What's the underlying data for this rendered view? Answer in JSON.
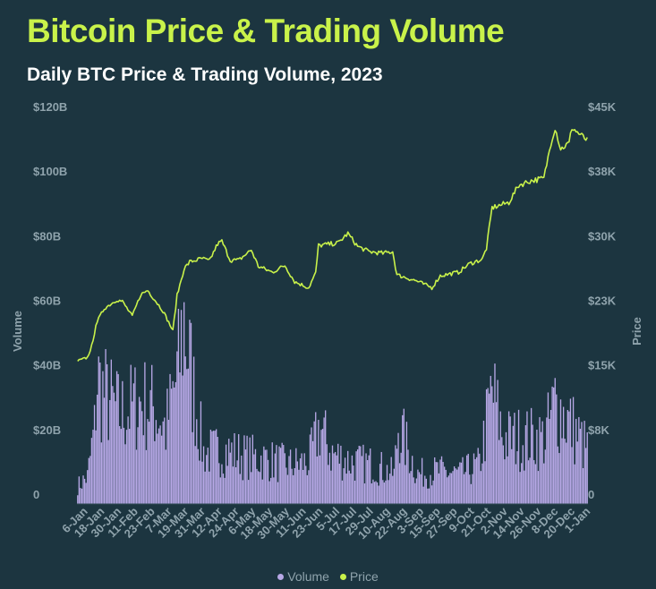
{
  "title": "Bitcoin Price & Trading Volume",
  "subtitle": "Daily BTC Price & Trading Volume, 2023",
  "colors": {
    "background": "#1c3540",
    "title": "#c9f24a",
    "price_line": "#c9f24a",
    "volume_bar": "#b7a8e6",
    "axis_text": "#8fa3ac"
  },
  "chart_data": {
    "type": "bar+line",
    "title": "Bitcoin Price & Trading Volume",
    "subtitle": "Daily BTC Price & Trading Volume, 2023",
    "y_left": {
      "label": "Volume",
      "range": [
        0,
        120000000000
      ],
      "ticks": [
        "0",
        "$20B",
        "$40B",
        "$60B",
        "$80B",
        "$100B",
        "$120B"
      ]
    },
    "y_right": {
      "label": "Price",
      "range": [
        0,
        45000
      ],
      "ticks": [
        "0",
        "$8K",
        "$15K",
        "$23K",
        "$30K",
        "$38K",
        "$45K"
      ]
    },
    "x_ticks": [
      "6-Jan",
      "18-Jan",
      "30-Jan",
      "11-Feb",
      "23-Feb",
      "7-Mar",
      "19-Mar",
      "31-Mar",
      "12-Apr",
      "24-Apr",
      "6-May",
      "18-May",
      "30-May",
      "11-Jun",
      "23-Jun",
      "5-Jul",
      "17-Jul",
      "29-Jul",
      "10-Aug",
      "22-Aug",
      "3-Sep",
      "15-Sep",
      "27-Sep",
      "9-Oct",
      "21-Oct",
      "2-Nov",
      "14-Nov",
      "26-Nov",
      "8-Dec",
      "20-Dec",
      "1-Jan"
    ],
    "grid": false,
    "legend_position": "bottom",
    "series": [
      {
        "name": "Volume",
        "type": "bar",
        "axis": "left",
        "color": "#b7a8e6"
      },
      {
        "name": "Price",
        "type": "line",
        "axis": "right",
        "color": "#c9f24a"
      }
    ],
    "price_anchors": [
      [
        "2023-01-01",
        16600
      ],
      [
        "2023-01-08",
        17000
      ],
      [
        "2023-01-12",
        18800
      ],
      [
        "2023-01-14",
        20900
      ],
      [
        "2023-01-20",
        22700
      ],
      [
        "2023-01-29",
        23700
      ],
      [
        "2023-02-02",
        23500
      ],
      [
        "2023-02-09",
        21800
      ],
      [
        "2023-02-15",
        24300
      ],
      [
        "2023-02-20",
        24800
      ],
      [
        "2023-02-26",
        23500
      ],
      [
        "2023-03-03",
        22400
      ],
      [
        "2023-03-10",
        20100
      ],
      [
        "2023-03-13",
        24200
      ],
      [
        "2023-03-18",
        27300
      ],
      [
        "2023-03-22",
        28100
      ],
      [
        "2023-03-31",
        28500
      ],
      [
        "2023-04-05",
        28200
      ],
      [
        "2023-04-11",
        30200
      ],
      [
        "2023-04-14",
        30500
      ],
      [
        "2023-04-20",
        28300
      ],
      [
        "2023-04-26",
        28300
      ],
      [
        "2023-05-05",
        29500
      ],
      [
        "2023-05-10",
        27600
      ],
      [
        "2023-05-20",
        26900
      ],
      [
        "2023-05-29",
        27700
      ],
      [
        "2023-06-05",
        25800
      ],
      [
        "2023-06-15",
        25100
      ],
      [
        "2023-06-20",
        26800
      ],
      [
        "2023-06-22",
        30000
      ],
      [
        "2023-07-06",
        30300
      ],
      [
        "2023-07-13",
        31400
      ],
      [
        "2023-07-20",
        29900
      ],
      [
        "2023-07-28",
        29300
      ],
      [
        "2023-08-07",
        29100
      ],
      [
        "2023-08-14",
        29300
      ],
      [
        "2023-08-17",
        26600
      ],
      [
        "2023-08-31",
        25900
      ],
      [
        "2023-09-11",
        25100
      ],
      [
        "2023-09-17",
        26500
      ],
      [
        "2023-09-30",
        26900
      ],
      [
        "2023-10-08",
        27900
      ],
      [
        "2023-10-17",
        28400
      ],
      [
        "2023-10-20",
        29700
      ],
      [
        "2023-10-24",
        34400
      ],
      [
        "2023-11-05",
        35000
      ],
      [
        "2023-11-12",
        37000
      ],
      [
        "2023-11-20",
        37500
      ],
      [
        "2023-11-30",
        37800
      ],
      [
        "2023-12-05",
        41900
      ],
      [
        "2023-12-08",
        43700
      ],
      [
        "2023-12-12",
        41200
      ],
      [
        "2023-12-18",
        41900
      ],
      [
        "2023-12-20",
        43700
      ],
      [
        "2023-12-25",
        43000
      ],
      [
        "2023-12-31",
        42200
      ]
    ],
    "volume_anchors": [
      [
        "2023-01-01",
        6000000000
      ],
      [
        "2023-01-08",
        9000000000
      ],
      [
        "2023-01-13",
        25000000000
      ],
      [
        "2023-01-15",
        42000000000
      ],
      [
        "2023-01-18",
        38000000000
      ],
      [
        "2023-01-31",
        30000000000
      ],
      [
        "2023-02-15",
        34000000000
      ],
      [
        "2023-02-25",
        32000000000
      ],
      [
        "2023-03-05",
        25000000000
      ],
      [
        "2023-03-14",
        45000000000
      ],
      [
        "2023-03-18",
        62000000000
      ],
      [
        "2023-03-24",
        40000000000
      ],
      [
        "2023-04-01",
        17000000000
      ],
      [
        "2023-04-15",
        18000000000
      ],
      [
        "2023-05-01",
        16000000000
      ],
      [
        "2023-05-15",
        15000000000
      ],
      [
        "2023-06-01",
        13000000000
      ],
      [
        "2023-06-15",
        14000000000
      ],
      [
        "2023-06-23",
        26000000000
      ],
      [
        "2023-07-01",
        17000000000
      ],
      [
        "2023-07-15",
        14000000000
      ],
      [
        "2023-08-01",
        13000000000
      ],
      [
        "2023-08-15",
        10000000000
      ],
      [
        "2023-08-18",
        26000000000
      ],
      [
        "2023-09-01",
        10000000000
      ],
      [
        "2023-09-15",
        11000000000
      ],
      [
        "2023-10-01",
        10000000000
      ],
      [
        "2023-10-15",
        13000000000
      ],
      [
        "2023-10-24",
        38000000000
      ],
      [
        "2023-11-01",
        22000000000
      ],
      [
        "2023-11-15",
        22000000000
      ],
      [
        "2023-12-01",
        22000000000
      ],
      [
        "2023-12-08",
        34000000000
      ],
      [
        "2023-12-20",
        26000000000
      ],
      [
        "2023-12-31",
        18000000000
      ]
    ]
  },
  "legend": {
    "volume": "Volume",
    "price": "Price"
  }
}
